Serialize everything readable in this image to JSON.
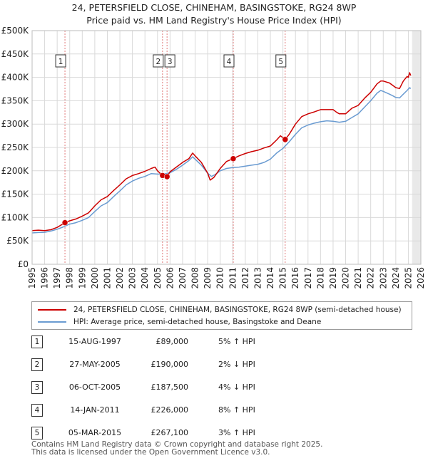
{
  "title": {
    "line1": "24, PETERSFIELD CLOSE, CHINEHAM, BASINGSTOKE, RG24 8WP",
    "line2": "Price paid vs. HM Land Registry's House Price Index (HPI)"
  },
  "colors": {
    "property": "#cc0000",
    "hpi": "#6a9bd1",
    "marker_line": "#e07a7a",
    "grid": "#d9d9d9",
    "future_shade": "#e9e9e9"
  },
  "chart_data": {
    "type": "line",
    "x_range": [
      1995,
      2026
    ],
    "ylim": [
      0,
      500000
    ],
    "y_ticks": [
      {
        "value": 0,
        "label": "£0"
      },
      {
        "value": 50000,
        "label": "£50K"
      },
      {
        "value": 100000,
        "label": "£100K"
      },
      {
        "value": 150000,
        "label": "£150K"
      },
      {
        "value": 200000,
        "label": "£200K"
      },
      {
        "value": 250000,
        "label": "£250K"
      },
      {
        "value": 300000,
        "label": "£300K"
      },
      {
        "value": 350000,
        "label": "£350K"
      },
      {
        "value": 400000,
        "label": "£400K"
      },
      {
        "value": 450000,
        "label": "£450K"
      },
      {
        "value": 500000,
        "label": "£500K"
      }
    ],
    "x_ticks": [
      "1995",
      "1996",
      "1997",
      "1998",
      "1999",
      "2000",
      "2001",
      "2002",
      "2003",
      "2004",
      "2005",
      "2006",
      "2007",
      "2008",
      "2009",
      "2010",
      "2011",
      "2012",
      "2013",
      "2014",
      "2015",
      "2016",
      "2017",
      "2018",
      "2019",
      "2020",
      "2021",
      "2022",
      "2023",
      "2024",
      "2025",
      "2026"
    ],
    "data_end_year": 2025.3,
    "grid": true,
    "series": [
      {
        "name": "24, PETERSFIELD CLOSE, CHINEHAM, BASINGSTOKE, RG24 8WP (semi-detached house)",
        "color": "#cc0000",
        "points": [
          [
            1995.0,
            72000
          ],
          [
            1995.5,
            73000
          ],
          [
            1996.0,
            72000
          ],
          [
            1996.5,
            74000
          ],
          [
            1997.0,
            79000
          ],
          [
            1997.62,
            89000
          ],
          [
            1998.0,
            93000
          ],
          [
            1998.5,
            97000
          ],
          [
            1999.0,
            103000
          ],
          [
            1999.5,
            110000
          ],
          [
            2000.0,
            125000
          ],
          [
            2000.5,
            138000
          ],
          [
            2001.0,
            145000
          ],
          [
            2001.5,
            158000
          ],
          [
            2002.0,
            170000
          ],
          [
            2002.5,
            183000
          ],
          [
            2003.0,
            190000
          ],
          [
            2003.5,
            194000
          ],
          [
            2004.0,
            199000
          ],
          [
            2004.5,
            205000
          ],
          [
            2004.8,
            208000
          ],
          [
            2005.0,
            200000
          ],
          [
            2005.4,
            190000
          ],
          [
            2005.76,
            187500
          ],
          [
            2006.0,
            198000
          ],
          [
            2006.5,
            208000
          ],
          [
            2007.0,
            218000
          ],
          [
            2007.5,
            226000
          ],
          [
            2007.8,
            238000
          ],
          [
            2008.0,
            232000
          ],
          [
            2008.5,
            218000
          ],
          [
            2009.0,
            195000
          ],
          [
            2009.2,
            180000
          ],
          [
            2009.5,
            186000
          ],
          [
            2010.0,
            205000
          ],
          [
            2010.5,
            220000
          ],
          [
            2011.04,
            226000
          ],
          [
            2011.5,
            232000
          ],
          [
            2012.0,
            237000
          ],
          [
            2012.5,
            241000
          ],
          [
            2013.0,
            244000
          ],
          [
            2013.5,
            249000
          ],
          [
            2014.0,
            253000
          ],
          [
            2014.5,
            266000
          ],
          [
            2014.8,
            275000
          ],
          [
            2015.18,
            267100
          ],
          [
            2015.5,
            278000
          ],
          [
            2016.0,
            300000
          ],
          [
            2016.5,
            316000
          ],
          [
            2017.0,
            322000
          ],
          [
            2017.5,
            326000
          ],
          [
            2018.0,
            331000
          ],
          [
            2018.5,
            331000
          ],
          [
            2019.0,
            331000
          ],
          [
            2019.3,
            325000
          ],
          [
            2019.5,
            322000
          ],
          [
            2020.0,
            322000
          ],
          [
            2020.5,
            334000
          ],
          [
            2021.0,
            340000
          ],
          [
            2021.5,
            355000
          ],
          [
            2022.0,
            368000
          ],
          [
            2022.5,
            386000
          ],
          [
            2022.8,
            392000
          ],
          [
            2023.0,
            392000
          ],
          [
            2023.5,
            388000
          ],
          [
            2023.8,
            382000
          ],
          [
            2024.0,
            378000
          ],
          [
            2024.3,
            376000
          ],
          [
            2024.6,
            392000
          ],
          [
            2024.9,
            402000
          ],
          [
            2025.0,
            400000
          ],
          [
            2025.1,
            410000
          ],
          [
            2025.2,
            404000
          ]
        ]
      },
      {
        "name": "HPI: Average price, semi-detached house, Basingstoke and Deane",
        "color": "#6a9bd1",
        "points": [
          [
            1995.0,
            67000
          ],
          [
            1995.5,
            68000
          ],
          [
            1996.0,
            68500
          ],
          [
            1996.5,
            71000
          ],
          [
            1997.0,
            75000
          ],
          [
            1997.5,
            80000
          ],
          [
            1998.0,
            86000
          ],
          [
            1998.5,
            89000
          ],
          [
            1999.0,
            94000
          ],
          [
            1999.5,
            100000
          ],
          [
            2000.0,
            113000
          ],
          [
            2000.5,
            125000
          ],
          [
            2001.0,
            132000
          ],
          [
            2001.5,
            145000
          ],
          [
            2002.0,
            157000
          ],
          [
            2002.5,
            170000
          ],
          [
            2003.0,
            178000
          ],
          [
            2003.5,
            184000
          ],
          [
            2004.0,
            188000
          ],
          [
            2004.5,
            194000
          ],
          [
            2005.0,
            193000
          ],
          [
            2005.5,
            193000
          ],
          [
            2006.0,
            196000
          ],
          [
            2006.5,
            203000
          ],
          [
            2007.0,
            212000
          ],
          [
            2007.5,
            222000
          ],
          [
            2007.8,
            230000
          ],
          [
            2008.0,
            225000
          ],
          [
            2008.5,
            212000
          ],
          [
            2009.0,
            195000
          ],
          [
            2009.3,
            188000
          ],
          [
            2009.6,
            192000
          ],
          [
            2010.0,
            200000
          ],
          [
            2010.5,
            205000
          ],
          [
            2011.0,
            207000
          ],
          [
            2011.5,
            208000
          ],
          [
            2012.0,
            210000
          ],
          [
            2012.5,
            212000
          ],
          [
            2013.0,
            214000
          ],
          [
            2013.5,
            218000
          ],
          [
            2014.0,
            225000
          ],
          [
            2014.5,
            238000
          ],
          [
            2015.0,
            248000
          ],
          [
            2015.5,
            262000
          ],
          [
            2016.0,
            278000
          ],
          [
            2016.5,
            292000
          ],
          [
            2017.0,
            298000
          ],
          [
            2017.5,
            302000
          ],
          [
            2018.0,
            305000
          ],
          [
            2018.5,
            307000
          ],
          [
            2019.0,
            306000
          ],
          [
            2019.5,
            304000
          ],
          [
            2020.0,
            306000
          ],
          [
            2020.5,
            314000
          ],
          [
            2021.0,
            322000
          ],
          [
            2021.5,
            336000
          ],
          [
            2022.0,
            350000
          ],
          [
            2022.5,
            366000
          ],
          [
            2022.8,
            372000
          ],
          [
            2023.0,
            370000
          ],
          [
            2023.5,
            364000
          ],
          [
            2023.8,
            360000
          ],
          [
            2024.0,
            357000
          ],
          [
            2024.3,
            356000
          ],
          [
            2024.6,
            364000
          ],
          [
            2024.9,
            372000
          ],
          [
            2025.1,
            378000
          ],
          [
            2025.2,
            376000
          ]
        ]
      }
    ],
    "markers": [
      {
        "label": "1",
        "x": 1997.62,
        "value": 89000
      },
      {
        "label": "2",
        "x": 2005.4,
        "value": 190000
      },
      {
        "label": "3",
        "x": 2005.76,
        "value": 187500
      },
      {
        "label": "4",
        "x": 2011.04,
        "value": 226000
      },
      {
        "label": "5",
        "x": 2015.18,
        "value": 267100
      }
    ]
  },
  "legend": {
    "property_label": "24, PETERSFIELD CLOSE, CHINEHAM, BASINGSTOKE, RG24 8WP (semi-detached house)",
    "hpi_label": "HPI: Average price, semi-detached house, Basingstoke and Deane"
  },
  "sales": [
    {
      "num": "1",
      "date": "15-AUG-1997",
      "price": "£89,000",
      "hpi": "5% ↑ HPI"
    },
    {
      "num": "2",
      "date": "27-MAY-2005",
      "price": "£190,000",
      "hpi": "2% ↓ HPI"
    },
    {
      "num": "3",
      "date": "06-OCT-2005",
      "price": "£187,500",
      "hpi": "4% ↓ HPI"
    },
    {
      "num": "4",
      "date": "14-JAN-2011",
      "price": "£226,000",
      "hpi": "8% ↑ HPI"
    },
    {
      "num": "5",
      "date": "05-MAR-2015",
      "price": "£267,100",
      "hpi": "3% ↑ HPI"
    }
  ],
  "footer": {
    "line1": "Contains HM Land Registry data © Crown copyright and database right 2025.",
    "line2": "This data is licensed under the Open Government Licence v3.0."
  }
}
